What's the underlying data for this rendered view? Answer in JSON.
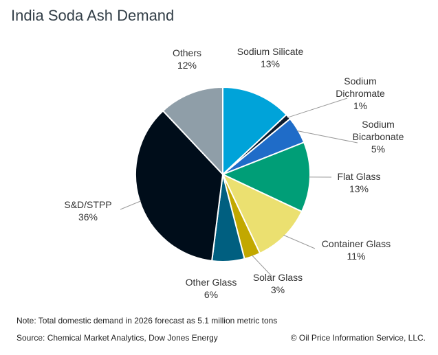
{
  "chart_data": {
    "type": "pie",
    "title": "India Soda Ash Demand",
    "slices": [
      {
        "name": "Sodium Silicate",
        "label_lines": [
          "Sodium Silicate"
        ],
        "pct_text": "13%",
        "value": 13,
        "color": "#00a3d9"
      },
      {
        "name": "Sodium Dichromate",
        "label_lines": [
          "Sodium",
          "Dichromate"
        ],
        "pct_text": "1%",
        "value": 1,
        "color": "#0b1b2e"
      },
      {
        "name": "Sodium Bicarbonate",
        "label_lines": [
          "Sodium",
          "Bicarbonate"
        ],
        "pct_text": "5%",
        "value": 5,
        "color": "#1f6cc8"
      },
      {
        "name": "Flat Glass",
        "label_lines": [
          "Flat Glass"
        ],
        "pct_text": "13%",
        "value": 13,
        "color": "#009e77"
      },
      {
        "name": "Container Glass",
        "label_lines": [
          "Container Glass"
        ],
        "pct_text": "11%",
        "value": 11,
        "color": "#ebe070"
      },
      {
        "name": "Solar Glass",
        "label_lines": [
          "Solar Glass"
        ],
        "pct_text": "3%",
        "value": 3,
        "color": "#c2a800"
      },
      {
        "name": "Other Glass",
        "label_lines": [
          "Other Glass"
        ],
        "pct_text": "6%",
        "value": 6,
        "color": "#005f80"
      },
      {
        "name": "S&D/STPP",
        "label_lines": [
          "S&D/STPP"
        ],
        "pct_text": "36%",
        "value": 36,
        "color": "#000d1a"
      },
      {
        "name": "Others",
        "label_lines": [
          "Others"
        ],
        "pct_text": "12%",
        "value": 12,
        "color": "#8f9ea8"
      }
    ]
  },
  "footer": {
    "note": "Note: Total domestic demand in 2026 forecast as 5.1 million metric tons",
    "source": "Source: Chemical Market Analytics, Dow Jones Energy",
    "copyright": "© Oil Price Information Service, LLC."
  }
}
